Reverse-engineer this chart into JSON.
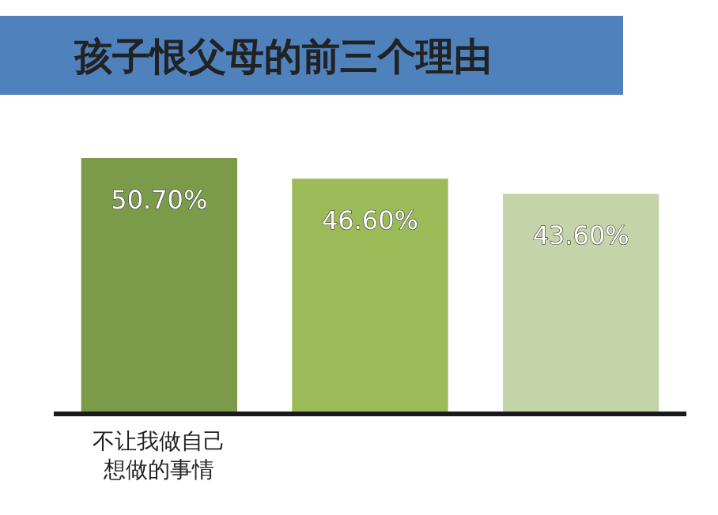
{
  "chart_data": {
    "type": "bar",
    "title": "孩子恨父母的前三个理由",
    "categories": [
      "不让我做自己想做的事情",
      null,
      null
    ],
    "values": [
      50.7,
      46.6,
      43.6
    ],
    "colors": [
      "#7b9a4a",
      "#9bbb59",
      "#c5d4a8"
    ],
    "value_labels": [
      "50.70%",
      "46.60%",
      "43.60%"
    ]
  }
}
